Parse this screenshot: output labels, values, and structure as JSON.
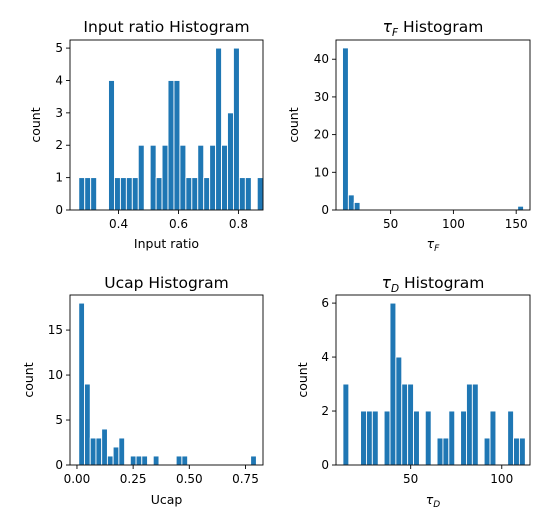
{
  "chart_data": [
    {
      "type": "bar",
      "title": "Input ratio Histogram",
      "xlabel": "Input ratio",
      "ylabel": "count",
      "xlim": [
        0.238,
        0.882
      ],
      "ylim": [
        0,
        5.25
      ],
      "xticks": [
        "0.4",
        "0.6",
        "0.8"
      ],
      "xtick_values": [
        0.4,
        0.6,
        0.8
      ],
      "yticks": [
        "0",
        "1",
        "2",
        "3",
        "4",
        "5"
      ],
      "ytick_values": [
        0,
        1,
        2,
        3,
        4,
        5
      ],
      "bin_start": 0.2673,
      "bin_width": 0.01985,
      "values": [
        1,
        1,
        1,
        0,
        0,
        4,
        1,
        1,
        1,
        1,
        2,
        0,
        2,
        1,
        2,
        4,
        4,
        2,
        1,
        1,
        2,
        1,
        2,
        5,
        2,
        3,
        5,
        1,
        1,
        0,
        1
      ]
    },
    {
      "type": "bar",
      "title": "τF Histogram",
      "title_main": "τ",
      "title_sub": "F",
      "title_rest": " Histogram",
      "xlabel": "τF",
      "xlabel_main": "τ",
      "xlabel_sub": "F",
      "ylabel": "count",
      "xlim": [
        6.5,
        161
      ],
      "ylim": [
        0,
        45.1
      ],
      "xticks": [
        "50",
        "100",
        "150"
      ],
      "xtick_values": [
        50,
        100,
        150
      ],
      "yticks": [
        "0",
        "10",
        "20",
        "30",
        "40"
      ],
      "ytick_values": [
        0,
        10,
        20,
        30,
        40
      ],
      "bin_start": 11.7,
      "bin_width": 4.65,
      "values": [
        43,
        4,
        2,
        0,
        0,
        0,
        0,
        0,
        0,
        0,
        0,
        0,
        0,
        0,
        0,
        0,
        0,
        0,
        0,
        0,
        0,
        0,
        0,
        0,
        0,
        0,
        0,
        0,
        0,
        0,
        1
      ]
    },
    {
      "type": "bar",
      "title": "Ucap Histogram",
      "xlabel": "Ucap",
      "ylabel": "count",
      "xlim": [
        -0.031,
        0.828
      ],
      "ylim": [
        0,
        18.9
      ],
      "xticks": [
        "0.00",
        "0.25",
        "0.50",
        "0.75"
      ],
      "xtick_values": [
        0,
        0.25,
        0.5,
        0.75
      ],
      "yticks": [
        "0",
        "5",
        "10",
        "15"
      ],
      "ytick_values": [
        0,
        5,
        10,
        15
      ],
      "bin_start": 0.008,
      "bin_width": 0.0255,
      "values": [
        18,
        9,
        3,
        3,
        4,
        1,
        2,
        3,
        0,
        1,
        1,
        1,
        0,
        1,
        0,
        0,
        0,
        1,
        1,
        0,
        0,
        0,
        0,
        0,
        0,
        0,
        0,
        0,
        0,
        0,
        1
      ]
    },
    {
      "type": "bar",
      "title": "τD Histogram",
      "title_main": "τ",
      "title_sub": "D",
      "title_rest": " Histogram",
      "xlabel": "τD",
      "xlabel_main": "τ",
      "xlabel_sub": "D",
      "ylabel": "count",
      "xlim": [
        9,
        115.5
      ],
      "ylim": [
        0,
        6.3
      ],
      "xticks": [
        "50",
        "100"
      ],
      "xtick_values": [
        50,
        100
      ],
      "yticks": [
        "0",
        "2",
        "4",
        "6"
      ],
      "ytick_values": [
        0,
        2,
        4,
        6
      ],
      "bin_start": 12.8,
      "bin_width": 3.23,
      "values": [
        3,
        0,
        0,
        2,
        2,
        2,
        0,
        2,
        6,
        4,
        3,
        3,
        2,
        0,
        2,
        0,
        1,
        1,
        2,
        0,
        2,
        3,
        3,
        0,
        1,
        2,
        0,
        0,
        2,
        1,
        1
      ]
    }
  ]
}
